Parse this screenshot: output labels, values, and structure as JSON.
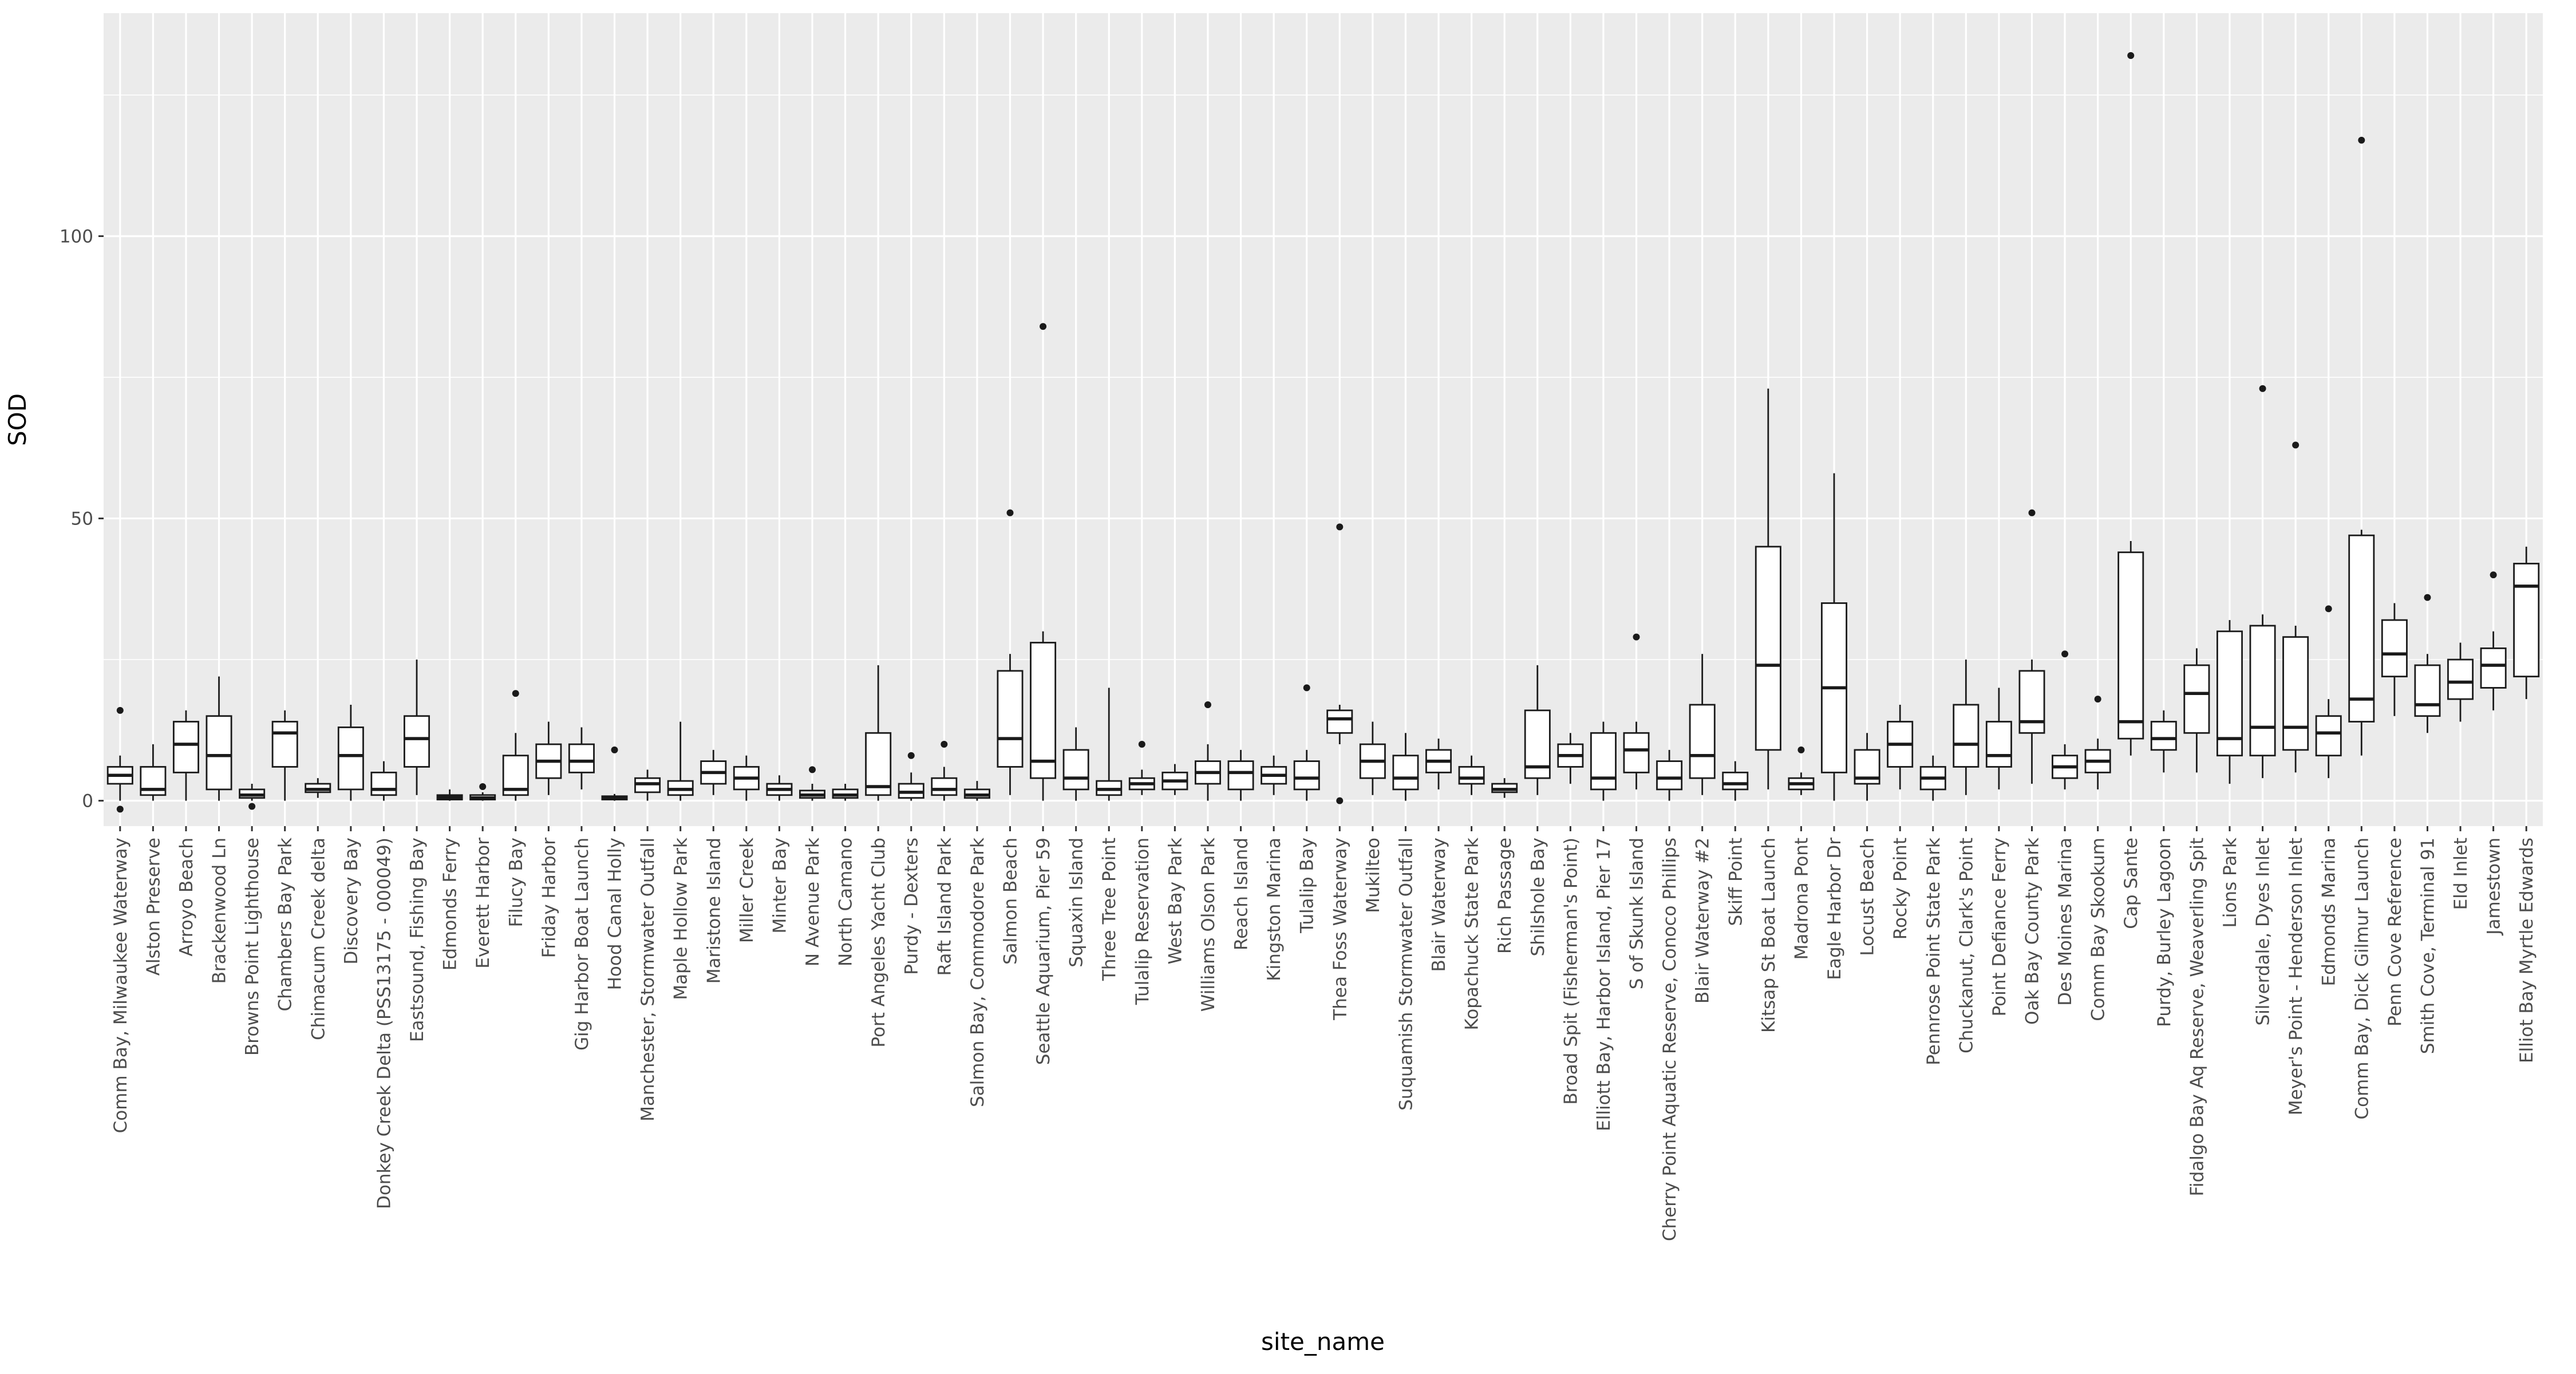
{
  "colors": {
    "background": "#FFFFFF",
    "panel_bg": "#EBEBEB",
    "grid": "#FFFFFF",
    "box_stroke": "#1A1A1A",
    "box_fill": "#FFFFFF",
    "tick_mark": "#333333",
    "tick_text": "#4D4D4D",
    "title_text": "#000000"
  },
  "chart_data": {
    "type": "boxplot",
    "title": "",
    "xlabel": "site_name",
    "ylabel": "SOD",
    "ylim": [
      -4.5,
      139.5
    ],
    "yticks": [
      0,
      50,
      100
    ],
    "yticks_minor": [
      25,
      75,
      125
    ],
    "grid": true,
    "legend": "none",
    "categories": [
      "Comm Bay, Milwaukee Waterway",
      "Alston Preserve",
      "Arroyo Beach",
      "Brackenwood Ln",
      "Browns Point Lighthouse",
      "Chambers Bay Park",
      "Chimacum Creek delta",
      "Discovery Bay",
      "Donkey Creek Delta (PSS13175 - 000049)",
      "Eastsound, Fishing Bay",
      "Edmonds Ferry",
      "Everett Harbor",
      "Filucy Bay",
      "Friday Harbor",
      "Gig Harbor Boat Launch",
      "Hood Canal Holly",
      "Manchester, Stormwater Outfall",
      "Maple Hollow Park",
      "Maristone Island",
      "Miller Creek",
      "Minter Bay",
      "N Avenue Park",
      "North Camano",
      "Port Angeles Yacht Club",
      "Purdy - Dexters",
      "Raft Island Park",
      "Salmon Bay, Commodore Park",
      "Salmon Beach",
      "Seattle Aquarium, Pier 59",
      "Squaxin Island",
      "Three Tree Point",
      "Tulalip Reservation",
      "West Bay Park",
      "Williams Olson Park",
      "Reach Island",
      "Kingston Marina",
      "Tulalip Bay",
      "Thea Foss Waterway",
      "Mukilteo",
      "Suquamish Stormwater Outfall",
      "Blair Waterway",
      "Kopachuck State Park",
      "Rich Passage",
      "Shilshole Bay",
      "Broad Spit (Fisherman's Point)",
      "Elliott Bay, Harbor Island, Pier 17",
      "S of Skunk Island",
      "Cherry Point Aquatic Reserve, Conoco Phillips",
      "Blair Waterway #2",
      "Skiff Point",
      "Kitsap St Boat Launch",
      "Madrona Pont",
      "Eagle Harbor Dr",
      "Locust Beach",
      "Rocky Point",
      "Pennrose Point State Park",
      "Chuckanut, Clark's Point",
      "Point Defiance Ferry",
      "Oak Bay County Park",
      "Des Moines Marina",
      "Comm Bay Skookum",
      "Cap Sante",
      "Purdy, Burley Lagoon",
      "Fidalgo Bay Aq Reserve, Weaverling Spit",
      "Lions Park",
      "Silverdale, Dyes Inlet",
      "Meyer's Point - Henderson Inlet",
      "Edmonds Marina",
      "Comm Bay, Dick Gilmur Launch",
      "Penn Cove Reference",
      "Smith Cove, Terminal 91",
      "Eld Inlet",
      "Jamestown",
      "Elliot Bay Myrtle Edwards"
    ],
    "stats": [
      {
        "low": 0,
        "q1": 3,
        "med": 4.5,
        "q3": 6,
        "high": 8,
        "outliers": [
          16,
          -1.5
        ]
      },
      {
        "low": 0,
        "q1": 1,
        "med": 2,
        "q3": 6,
        "high": 10,
        "outliers": []
      },
      {
        "low": 0,
        "q1": 5,
        "med": 10,
        "q3": 14,
        "high": 16,
        "outliers": []
      },
      {
        "low": 0,
        "q1": 2,
        "med": 8,
        "q3": 15,
        "high": 22,
        "outliers": []
      },
      {
        "low": 0,
        "q1": 0.5,
        "med": 1,
        "q3": 2,
        "high": 3,
        "outliers": [
          -1
        ]
      },
      {
        "low": 0,
        "q1": 6,
        "med": 12,
        "q3": 14,
        "high": 16,
        "outliers": []
      },
      {
        "low": 0.5,
        "q1": 1.5,
        "med": 2,
        "q3": 3,
        "high": 4,
        "outliers": []
      },
      {
        "low": 0,
        "q1": 2,
        "med": 8,
        "q3": 13,
        "high": 17,
        "outliers": []
      },
      {
        "low": 0,
        "q1": 1,
        "med": 2,
        "q3": 5,
        "high": 7,
        "outliers": []
      },
      {
        "low": 1,
        "q1": 6,
        "med": 11,
        "q3": 15,
        "high": 25,
        "outliers": []
      },
      {
        "low": 0,
        "q1": 0.2,
        "med": 0.6,
        "q3": 1,
        "high": 2,
        "outliers": []
      },
      {
        "low": 0,
        "q1": 0.2,
        "med": 0.5,
        "q3": 1,
        "high": 1.5,
        "outliers": [
          2.5
        ]
      },
      {
        "low": 0,
        "q1": 1,
        "med": 2,
        "q3": 8,
        "high": 12,
        "outliers": [
          19
        ]
      },
      {
        "low": 1,
        "q1": 4,
        "med": 7,
        "q3": 10,
        "high": 14,
        "outliers": []
      },
      {
        "low": 2,
        "q1": 5,
        "med": 7,
        "q3": 10,
        "high": 13,
        "outliers": []
      },
      {
        "low": 0,
        "q1": 0.2,
        "med": 0.5,
        "q3": 0.8,
        "high": 1.2,
        "outliers": [
          9
        ]
      },
      {
        "low": 0,
        "q1": 1.5,
        "med": 3,
        "q3": 4,
        "high": 5.5,
        "outliers": []
      },
      {
        "low": 0,
        "q1": 1,
        "med": 2,
        "q3": 3.5,
        "high": 14,
        "outliers": []
      },
      {
        "low": 1,
        "q1": 3,
        "med": 5,
        "q3": 7,
        "high": 9,
        "outliers": []
      },
      {
        "low": 0,
        "q1": 2,
        "med": 4,
        "q3": 6,
        "high": 8,
        "outliers": []
      },
      {
        "low": 0,
        "q1": 1,
        "med": 2,
        "q3": 3,
        "high": 4.5,
        "outliers": []
      },
      {
        "low": 0,
        "q1": 0.5,
        "med": 1,
        "q3": 1.8,
        "high": 3,
        "outliers": [
          5.5
        ]
      },
      {
        "low": 0,
        "q1": 0.5,
        "med": 1,
        "q3": 2,
        "high": 3,
        "outliers": []
      },
      {
        "low": 0,
        "q1": 1,
        "med": 2.5,
        "q3": 12,
        "high": 24,
        "outliers": []
      },
      {
        "low": 0,
        "q1": 0.5,
        "med": 1.5,
        "q3": 3,
        "high": 5,
        "outliers": [
          8
        ]
      },
      {
        "low": 0,
        "q1": 1,
        "med": 2,
        "q3": 4,
        "high": 6,
        "outliers": [
          10
        ]
      },
      {
        "low": 0,
        "q1": 0.5,
        "med": 1,
        "q3": 2,
        "high": 3.5,
        "outliers": []
      },
      {
        "low": 1,
        "q1": 6,
        "med": 11,
        "q3": 23,
        "high": 26,
        "outliers": [
          51
        ]
      },
      {
        "low": 0,
        "q1": 4,
        "med": 7,
        "q3": 28,
        "high": 30,
        "outliers": [
          84
        ]
      },
      {
        "low": 0,
        "q1": 2,
        "med": 4,
        "q3": 9,
        "high": 13,
        "outliers": []
      },
      {
        "low": 0,
        "q1": 1,
        "med": 2,
        "q3": 3.5,
        "high": 20,
        "outliers": []
      },
      {
        "low": 1,
        "q1": 2,
        "med": 3,
        "q3": 4,
        "high": 5.5,
        "outliers": [
          10
        ]
      },
      {
        "low": 1,
        "q1": 2,
        "med": 3.5,
        "q3": 5,
        "high": 6.5,
        "outliers": []
      },
      {
        "low": 0,
        "q1": 3,
        "med": 5,
        "q3": 7,
        "high": 10,
        "outliers": [
          17
        ]
      },
      {
        "low": 0,
        "q1": 2,
        "med": 5,
        "q3": 7,
        "high": 9,
        "outliers": []
      },
      {
        "low": 1,
        "q1": 3,
        "med": 4.5,
        "q3": 6,
        "high": 8,
        "outliers": []
      },
      {
        "low": 0,
        "q1": 2,
        "med": 4,
        "q3": 7,
        "high": 9,
        "outliers": [
          20
        ]
      },
      {
        "low": 10,
        "q1": 12,
        "med": 14.5,
        "q3": 16,
        "high": 17,
        "outliers": [
          48.5,
          0
        ]
      },
      {
        "low": 1,
        "q1": 4,
        "med": 7,
        "q3": 10,
        "high": 14,
        "outliers": []
      },
      {
        "low": 0,
        "q1": 2,
        "med": 4,
        "q3": 8,
        "high": 12,
        "outliers": []
      },
      {
        "low": 2,
        "q1": 5,
        "med": 7,
        "q3": 9,
        "high": 11,
        "outliers": []
      },
      {
        "low": 1,
        "q1": 3,
        "med": 4,
        "q3": 6,
        "high": 8,
        "outliers": []
      },
      {
        "low": 0.5,
        "q1": 1.5,
        "med": 2,
        "q3": 3,
        "high": 4,
        "outliers": []
      },
      {
        "low": 1,
        "q1": 4,
        "med": 6,
        "q3": 16,
        "high": 24,
        "outliers": []
      },
      {
        "low": 3,
        "q1": 6,
        "med": 8,
        "q3": 10,
        "high": 12,
        "outliers": []
      },
      {
        "low": 0,
        "q1": 2,
        "med": 4,
        "q3": 12,
        "high": 14,
        "outliers": []
      },
      {
        "low": 2,
        "q1": 5,
        "med": 9,
        "q3": 12,
        "high": 14,
        "outliers": [
          29
        ]
      },
      {
        "low": 0,
        "q1": 2,
        "med": 4,
        "q3": 7,
        "high": 9,
        "outliers": []
      },
      {
        "low": 1,
        "q1": 4,
        "med": 8,
        "q3": 17,
        "high": 26,
        "outliers": []
      },
      {
        "low": 0,
        "q1": 2,
        "med": 3,
        "q3": 5,
        "high": 7,
        "outliers": []
      },
      {
        "low": 2,
        "q1": 9,
        "med": 24,
        "q3": 45,
        "high": 73,
        "outliers": []
      },
      {
        "low": 1,
        "q1": 2,
        "med": 3,
        "q3": 4,
        "high": 5,
        "outliers": [
          9
        ]
      },
      {
        "low": 0,
        "q1": 5,
        "med": 20,
        "q3": 35,
        "high": 58,
        "outliers": []
      },
      {
        "low": 0,
        "q1": 3,
        "med": 4,
        "q3": 9,
        "high": 12,
        "outliers": []
      },
      {
        "low": 2,
        "q1": 6,
        "med": 10,
        "q3": 14,
        "high": 17,
        "outliers": []
      },
      {
        "low": 0,
        "q1": 2,
        "med": 4,
        "q3": 6,
        "high": 8,
        "outliers": []
      },
      {
        "low": 1,
        "q1": 6,
        "med": 10,
        "q3": 17,
        "high": 25,
        "outliers": []
      },
      {
        "low": 2,
        "q1": 6,
        "med": 8,
        "q3": 14,
        "high": 20,
        "outliers": []
      },
      {
        "low": 3,
        "q1": 12,
        "med": 14,
        "q3": 23,
        "high": 25,
        "outliers": [
          51
        ]
      },
      {
        "low": 2,
        "q1": 4,
        "med": 6,
        "q3": 8,
        "high": 10,
        "outliers": [
          26
        ]
      },
      {
        "low": 2,
        "q1": 5,
        "med": 7,
        "q3": 9,
        "high": 11,
        "outliers": [
          18
        ]
      },
      {
        "low": 8,
        "q1": 11,
        "med": 14,
        "q3": 44,
        "high": 46,
        "outliers": [
          132
        ]
      },
      {
        "low": 5,
        "q1": 9,
        "med": 11,
        "q3": 14,
        "high": 16,
        "outliers": []
      },
      {
        "low": 5,
        "q1": 12,
        "med": 19,
        "q3": 24,
        "high": 27,
        "outliers": []
      },
      {
        "low": 3,
        "q1": 8,
        "med": 11,
        "q3": 30,
        "high": 32,
        "outliers": []
      },
      {
        "low": 4,
        "q1": 8,
        "med": 13,
        "q3": 31,
        "high": 33,
        "outliers": [
          73
        ]
      },
      {
        "low": 5,
        "q1": 9,
        "med": 13,
        "q3": 29,
        "high": 31,
        "outliers": [
          63
        ]
      },
      {
        "low": 4,
        "q1": 8,
        "med": 12,
        "q3": 15,
        "high": 18,
        "outliers": [
          34
        ]
      },
      {
        "low": 8,
        "q1": 14,
        "med": 18,
        "q3": 47,
        "high": 48,
        "outliers": [
          117
        ]
      },
      {
        "low": 15,
        "q1": 22,
        "med": 26,
        "q3": 32,
        "high": 35,
        "outliers": []
      },
      {
        "low": 12,
        "q1": 15,
        "med": 17,
        "q3": 24,
        "high": 26,
        "outliers": [
          36
        ]
      },
      {
        "low": 14,
        "q1": 18,
        "med": 21,
        "q3": 25,
        "high": 28,
        "outliers": []
      },
      {
        "low": 16,
        "q1": 20,
        "med": 24,
        "q3": 27,
        "high": 30,
        "outliers": [
          40
        ]
      },
      {
        "low": 18,
        "q1": 22,
        "med": 38,
        "q3": 42,
        "high": 45,
        "outliers": []
      }
    ]
  }
}
